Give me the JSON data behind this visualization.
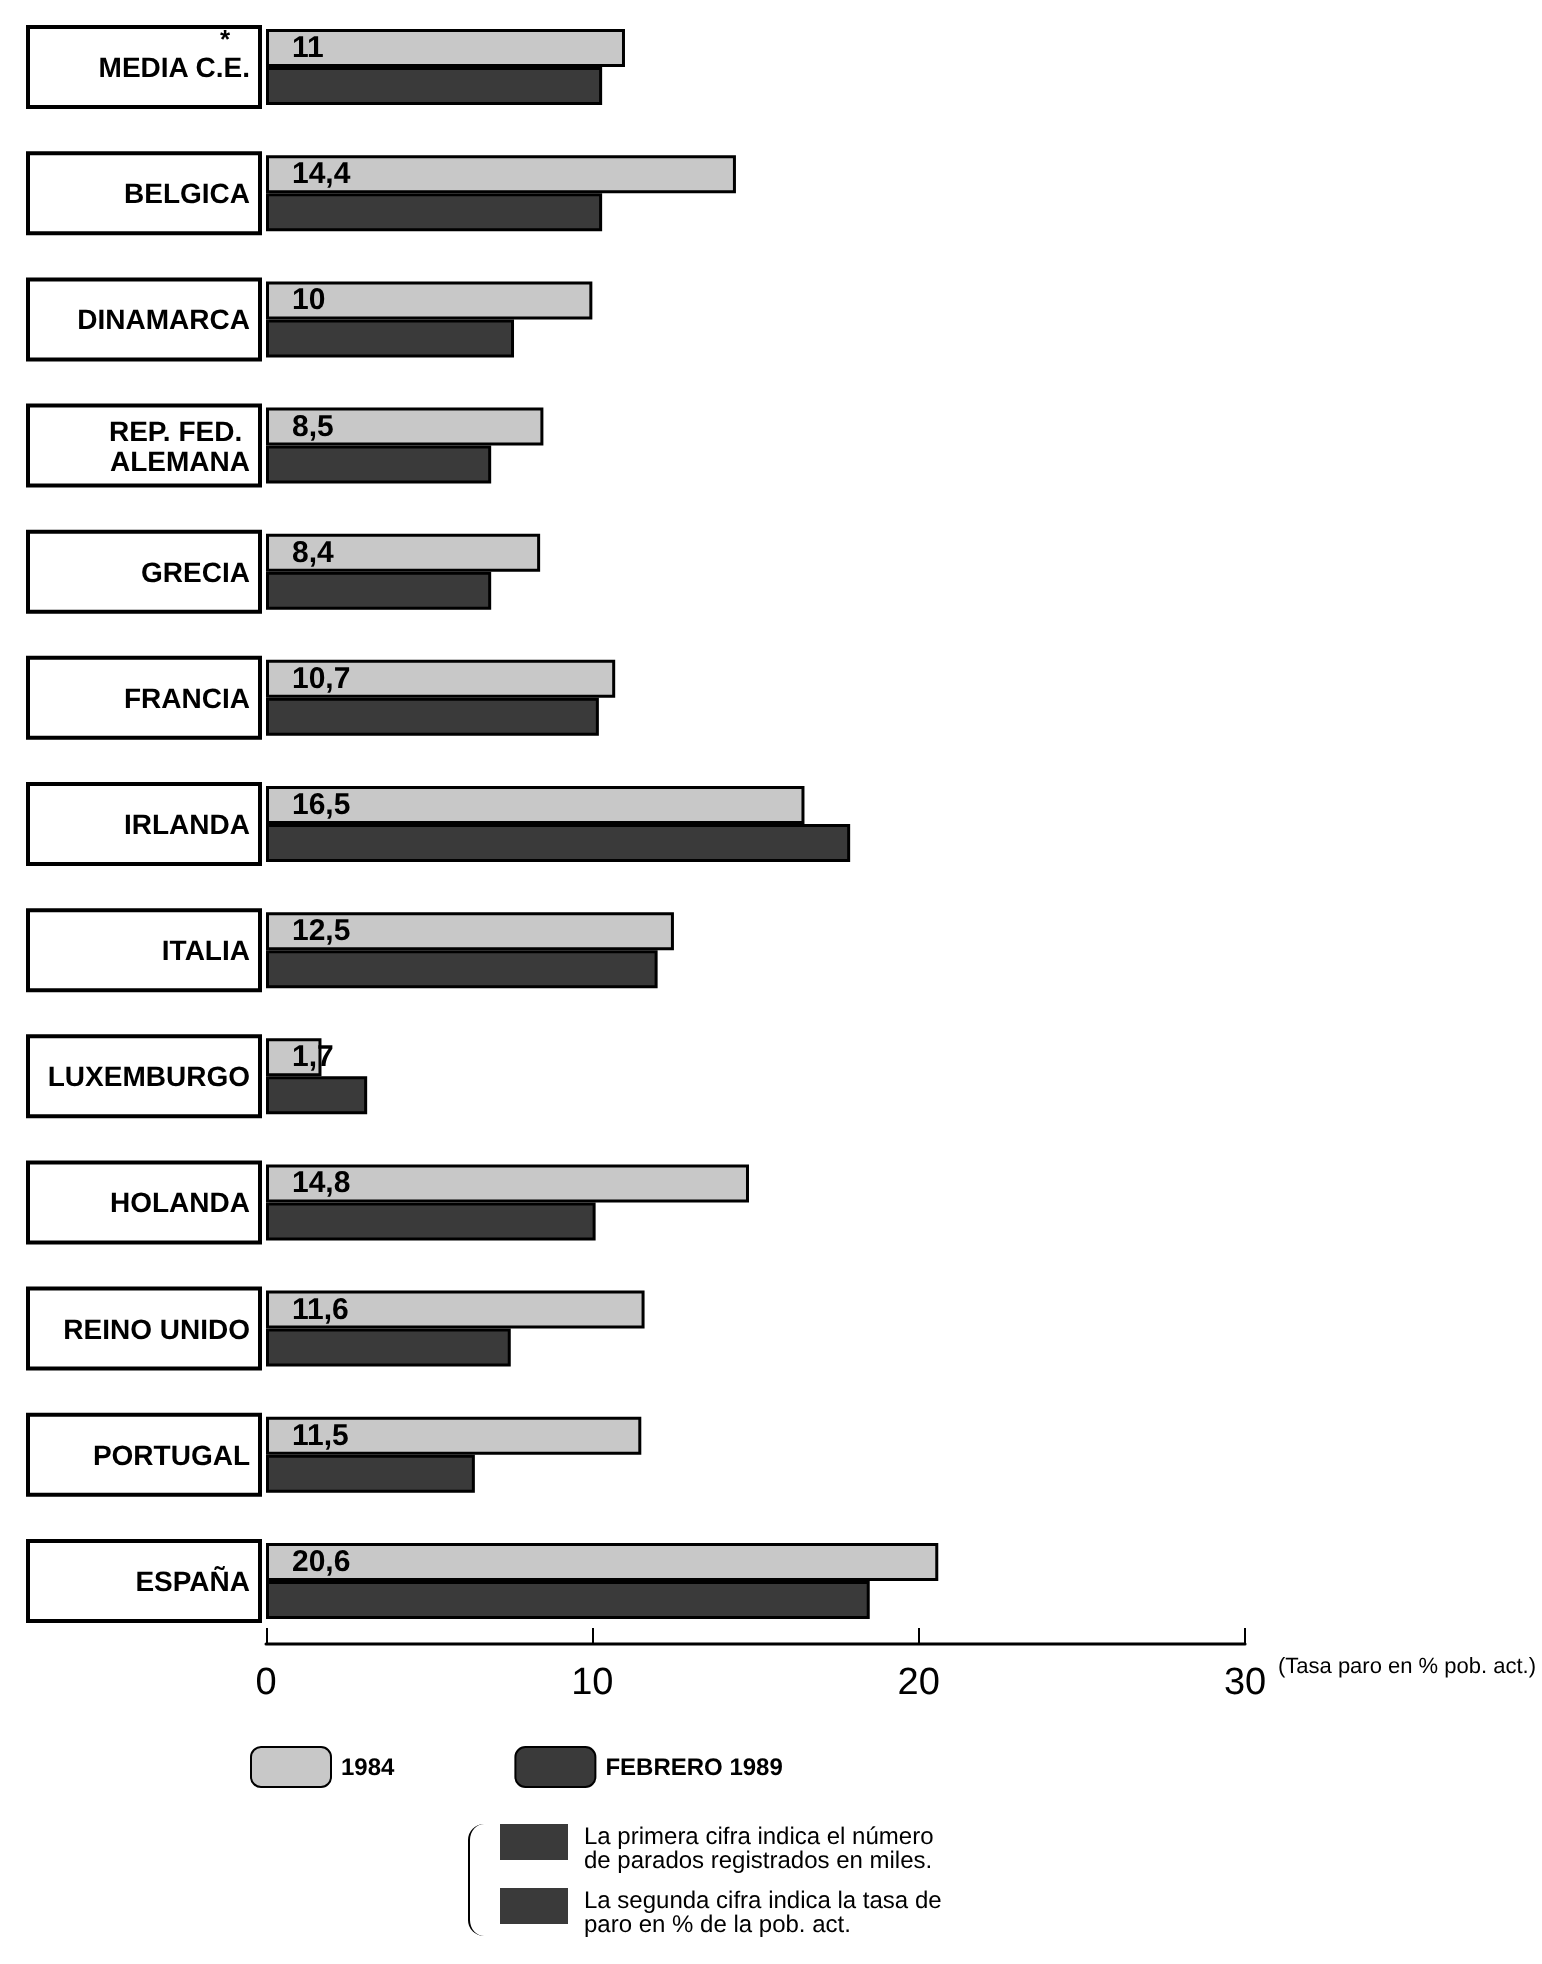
{
  "chart_data": {
    "type": "bar",
    "orientation": "horizontal",
    "categories": [
      "MEDIA C.E.",
      "BELGICA",
      "DINAMARCA",
      "REP. FED. ALEMANA",
      "GRECIA",
      "FRANCIA",
      "IRLANDA",
      "ITALIA",
      "LUXEMBURGO",
      "HOLANDA",
      "REINO UNIDO",
      "PORTUGAL",
      "ESPAÑA"
    ],
    "series": [
      {
        "name": "1984",
        "color": "#c8c8c8",
        "values": [
          11,
          14.4,
          10,
          8.5,
          8.4,
          10.7,
          16.5,
          12.5,
          1.7,
          14.8,
          11.6,
          11.5,
          20.6
        ],
        "value_labels": [
          "11",
          "14,4",
          "10",
          "8,5",
          "8,4",
          "10,7",
          "16,5",
          "12,5",
          "1,7",
          "14,8",
          "11,6",
          "11,5",
          "20,6"
        ]
      },
      {
        "name": "FEBRERO 1989",
        "color": "#3a3a3a",
        "values": [
          10.3,
          10.3,
          7.6,
          6.9,
          6.9,
          10.2,
          17.9,
          12,
          3.1,
          10.1,
          7.5,
          6.4,
          18.5
        ]
      }
    ],
    "xlim": [
      0,
      30
    ],
    "xticks": [
      0,
      10,
      20,
      30
    ],
    "xlabel": "(Tasa paro en % pob. act.)",
    "grid": false,
    "legend": "bottom left",
    "annotations": [
      "*",
      "La primera cifra indica el número de parados registrados en miles.",
      "La segunda cifra indica la tasa de paro en % de la pob. act."
    ]
  }
}
